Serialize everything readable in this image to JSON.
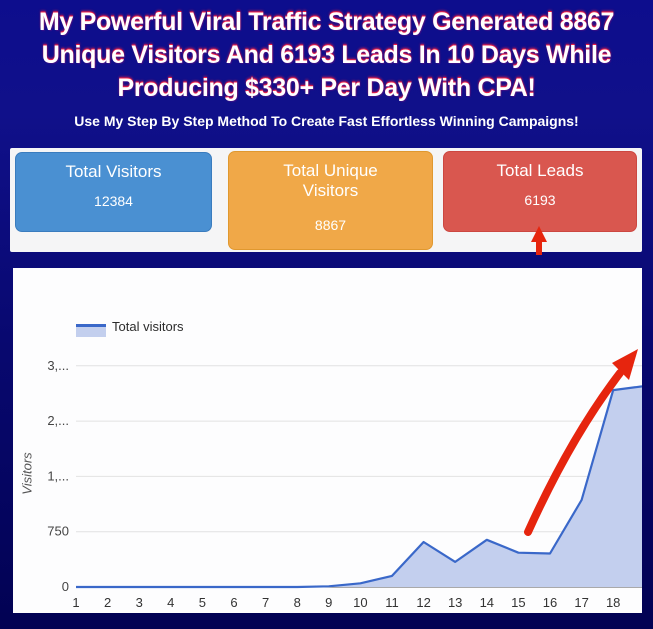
{
  "header": {
    "headline_line1": "My Powerful Viral Traffic Strategy Generated 8867",
    "headline_line2": "Unique Visitors And 6193 Leads In 10 Days While",
    "headline_line3": "Producing $330+ Per Day With CPA!",
    "subtitle": "Use My Step By Step Method To Create Fast Effortless Winning Campaigns!"
  },
  "stats": {
    "cards": [
      {
        "title": "Total Visitors",
        "value": "12384",
        "color": "#4a90d2",
        "border": "#3a7cbe"
      },
      {
        "title": "Total Unique Visitors",
        "value": "8867",
        "color": "#f0a848",
        "border": "#e0982f"
      },
      {
        "title": "Total Leads",
        "value": "6193",
        "color": "#d9574f",
        "border": "#cc4741"
      }
    ]
  },
  "chart_data": {
    "type": "area",
    "legend": "Total visitors",
    "legend_position": "top-left",
    "ylabel": "Visitors",
    "xlabel": "",
    "categories": [
      "1",
      "2",
      "3",
      "4",
      "5",
      "6",
      "7",
      "8",
      "9",
      "10",
      "11",
      "12",
      "13",
      "14",
      "15",
      "16",
      "17",
      "18"
    ],
    "values": [
      0,
      0,
      0,
      0,
      0,
      0,
      0,
      0,
      10,
      50,
      150,
      610,
      340,
      640,
      465,
      455,
      1180,
      2670
    ],
    "partial_next_value": 2720,
    "ytick_values": [
      0,
      750,
      1500,
      2250,
      3000
    ],
    "ytick_labels": [
      "0",
      "750",
      "1,...",
      "2,...",
      "3,..."
    ],
    "ylim": [
      0,
      3000
    ],
    "grid": true,
    "line_color": "#3a68c9",
    "fill_color": "#c3cfee",
    "gridline_color": "#e2e2e2",
    "baseline_color": "#555555",
    "axis_label_color": "#444444"
  },
  "arrows": {
    "color": "#e6250e"
  }
}
